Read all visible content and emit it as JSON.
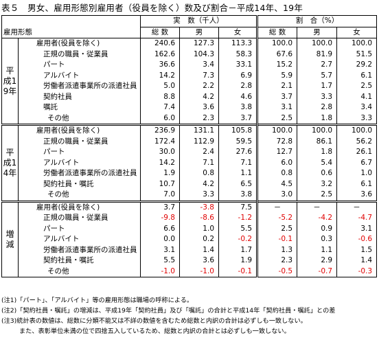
{
  "title": "表５　男女、雇用形態別雇用者（役員を除く）数及び割合－平成14年、19年",
  "header": {
    "group_jitsu": "実　数（千人）",
    "group_wariai": "割　合（%）",
    "row_label": "雇用形態",
    "cols": [
      "総 数",
      "男",
      "女",
      "総 数",
      "男",
      "女"
    ]
  },
  "sections": [
    {
      "label": "平成19年",
      "rows": [
        {
          "label": "雇用者(役員を除く)",
          "indent": 0,
          "values": [
            "240.6",
            "127.3",
            "113.3",
            "100.0",
            "100.0",
            "100.0"
          ]
        },
        {
          "label": "正規の職員・従業員",
          "indent": 1,
          "values": [
            "162.6",
            "104.3",
            "58.3",
            "67.6",
            "81.9",
            "51.5"
          ]
        },
        {
          "label": "パート",
          "indent": 1,
          "values": [
            "36.6",
            "3.4",
            "33.1",
            "15.2",
            "2.7",
            "29.2"
          ]
        },
        {
          "label": "アルバイト",
          "indent": 1,
          "values": [
            "14.2",
            "7.3",
            "6.9",
            "5.9",
            "5.7",
            "6.1"
          ]
        },
        {
          "label": "労働者派遣事業所の派遣社員",
          "indent": 1,
          "values": [
            "5.0",
            "2.2",
            "2.8",
            "2.1",
            "1.7",
            "2.5"
          ]
        },
        {
          "label": "契約社員",
          "indent": 1,
          "values": [
            "8.8",
            "4.2",
            "4.6",
            "3.7",
            "3.3",
            "4.1"
          ]
        },
        {
          "label": "嘱託",
          "indent": 1,
          "values": [
            "7.4",
            "3.6",
            "3.8",
            "3.1",
            "2.8",
            "3.4"
          ]
        },
        {
          "label": "その他",
          "indent": 2,
          "values": [
            "6.0",
            "2.3",
            "3.7",
            "2.5",
            "1.8",
            "3.3"
          ]
        }
      ]
    },
    {
      "label": "平成14年",
      "rows": [
        {
          "label": "雇用者(役員を除く)",
          "indent": 0,
          "values": [
            "236.9",
            "131.1",
            "105.8",
            "100.0",
            "100.0",
            "100.0"
          ]
        },
        {
          "label": "正規の職員・従業員",
          "indent": 1,
          "values": [
            "172.4",
            "112.9",
            "59.5",
            "72.8",
            "86.1",
            "56.2"
          ]
        },
        {
          "label": "パート",
          "indent": 1,
          "values": [
            "30.0",
            "2.4",
            "27.6",
            "12.7",
            "1.8",
            "26.1"
          ]
        },
        {
          "label": "アルバイト",
          "indent": 1,
          "values": [
            "14.2",
            "7.1",
            "7.1",
            "6.0",
            "5.4",
            "6.7"
          ]
        },
        {
          "label": "労働者派遣事業所の派遣社員",
          "indent": 1,
          "values": [
            "1.9",
            "0.8",
            "1.1",
            "0.8",
            "0.6",
            "1.0"
          ]
        },
        {
          "label": "契約社員・嘱託",
          "indent": 1,
          "values": [
            "10.7",
            "4.2",
            "6.5",
            "4.5",
            "3.2",
            "6.1"
          ]
        },
        {
          "label": "その他",
          "indent": 2,
          "values": [
            "7.0",
            "3.3",
            "3.8",
            "3.0",
            "2.5",
            "3.6"
          ]
        }
      ]
    },
    {
      "label": "増減",
      "rows": [
        {
          "label": "雇用者(役員を除く)",
          "indent": 0,
          "values": [
            "3.7",
            "-3.8",
            "7.5",
            "－",
            "－",
            "－"
          ]
        },
        {
          "label": "正規の職員・従業員",
          "indent": 1,
          "values": [
            "-9.8",
            "-8.6",
            "-1.2",
            "-5.2",
            "-4.2",
            "-4.7"
          ]
        },
        {
          "label": "パート",
          "indent": 1,
          "values": [
            "6.6",
            "1.0",
            "5.5",
            "2.5",
            "0.9",
            "3.1"
          ]
        },
        {
          "label": "アルバイト",
          "indent": 1,
          "values": [
            "0.0",
            "0.2",
            "-0.2",
            "-0.1",
            "0.3",
            "-0.6"
          ]
        },
        {
          "label": "労働者派遣事業所の派遣社員",
          "indent": 1,
          "values": [
            "3.1",
            "1.4",
            "1.7",
            "1.3",
            "1.1",
            "1.5"
          ]
        },
        {
          "label": "契約社員・嘱託",
          "indent": 1,
          "values": [
            "5.5",
            "3.6",
            "1.9",
            "2.3",
            "2.9",
            "1.4"
          ]
        },
        {
          "label": "その他",
          "indent": 2,
          "values": [
            "-1.0",
            "-1.0",
            "-0.1",
            "-0.5",
            "-0.7",
            "-0.3"
          ]
        }
      ]
    }
  ],
  "notes": [
    "(注1)「パート」、「アルバイト」等の雇用形態は職場の呼称による。",
    "(注2)「契約社員・嘱託」の増減は、平成19年「契約社員」及び「嘱託」の合計と平成14年「契約社員・嘱託」との差",
    "(注3)統計表の数値は、総数に分類不能又は不詳の数値を含むため総数と内訳の合計は必ずしも一致しない。",
    "また、表彰単位未満の位で四捨五入しているため、総数と内訳の合計とは必ずしも一致しない。"
  ],
  "colors": {
    "negative": "#e00000",
    "border": "#000000"
  }
}
